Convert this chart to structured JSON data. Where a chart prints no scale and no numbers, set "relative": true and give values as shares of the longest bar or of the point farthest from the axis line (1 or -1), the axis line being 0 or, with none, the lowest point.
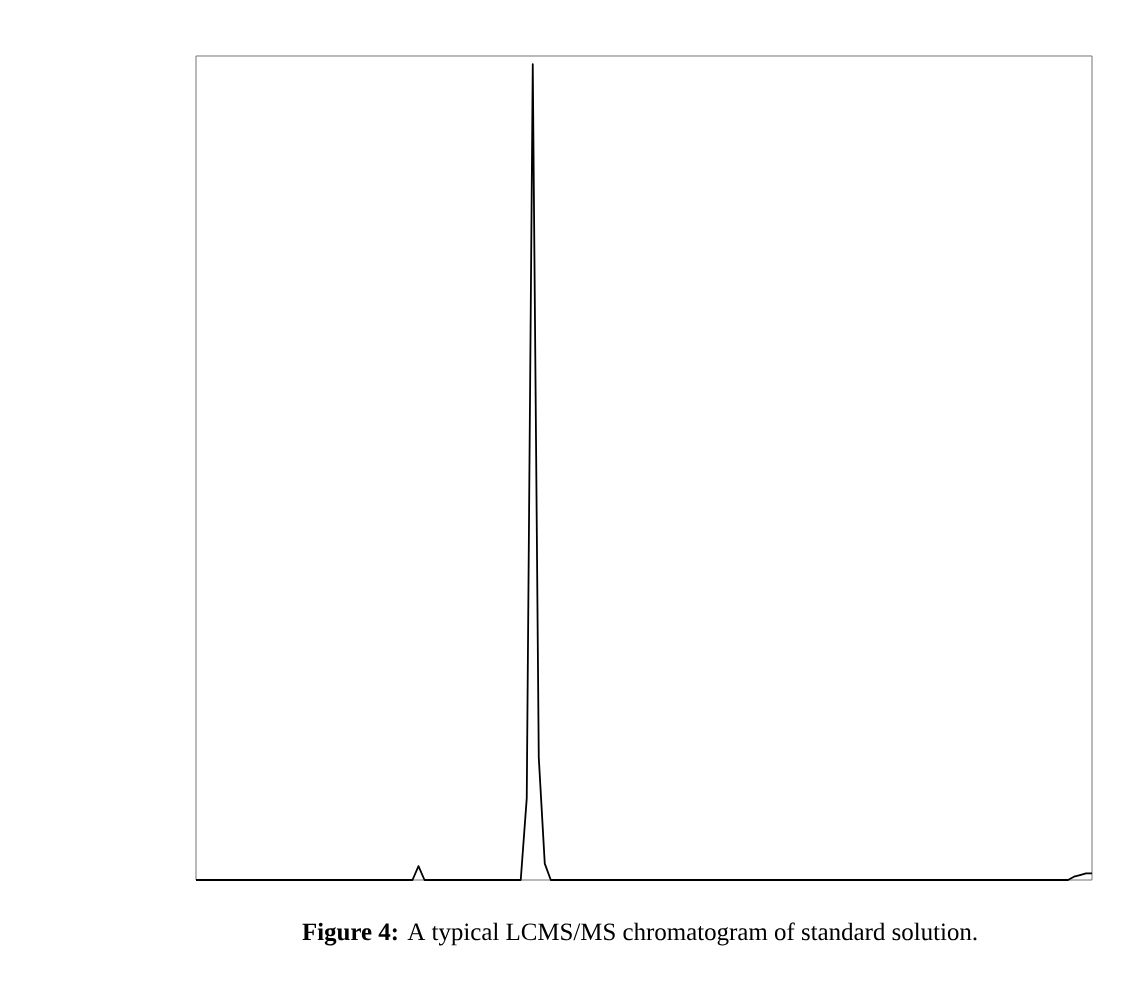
{
  "chart_data": {
    "type": "line",
    "relative": true,
    "color": "#000000",
    "categories": [
      null,
      null,
      null,
      null,
      null,
      null,
      null,
      null,
      null,
      null,
      null,
      null,
      null,
      null,
      null,
      null,
      null,
      null,
      null,
      null,
      null,
      null,
      null,
      null,
      null,
      null,
      null,
      null,
      null,
      null,
      null,
      null,
      null,
      null,
      null,
      null,
      null,
      null,
      null,
      null,
      null,
      null,
      null,
      null,
      null,
      null,
      null,
      null,
      null,
      null,
      null,
      null,
      null,
      null,
      null,
      null,
      null,
      null,
      null,
      null,
      null,
      null,
      null,
      null,
      null,
      null,
      null,
      null,
      null,
      null,
      null,
      null,
      null,
      null,
      null,
      null,
      null,
      null,
      null,
      null,
      null,
      null,
      null,
      null,
      null,
      null,
      null,
      null,
      null,
      null,
      null,
      null,
      null,
      null,
      null,
      null,
      null,
      null,
      null,
      null,
      null,
      null,
      null,
      null,
      null,
      null,
      null,
      null,
      null,
      null,
      null,
      null,
      null,
      null,
      null,
      null,
      null,
      null,
      null,
      null,
      null,
      null,
      null,
      null,
      null,
      null,
      null,
      null,
      null,
      null,
      null,
      null,
      null,
      null,
      null,
      null,
      null,
      null,
      null,
      null,
      null,
      null,
      null,
      null,
      null,
      null,
      null,
      null,
      null,
      null
    ],
    "values": [
      0,
      0,
      0,
      0,
      0,
      0,
      0,
      0,
      0,
      0,
      0,
      0,
      0,
      0,
      0,
      0,
      0,
      0,
      0,
      0,
      0,
      0,
      0,
      0,
      0,
      0,
      0,
      0,
      0,
      0,
      0,
      0,
      0,
      0,
      0,
      0,
      0,
      0.017,
      0,
      0,
      0,
      0,
      0,
      0,
      0,
      0,
      0,
      0,
      0,
      0,
      0,
      0,
      0,
      0,
      0,
      0.1,
      1,
      0.15,
      0.02,
      0,
      0,
      0,
      0,
      0,
      0,
      0,
      0,
      0,
      0,
      0,
      0,
      0,
      0,
      0,
      0,
      0,
      0,
      0,
      0,
      0,
      0,
      0,
      0,
      0,
      0,
      0,
      0,
      0,
      0,
      0,
      0,
      0,
      0,
      0,
      0,
      0,
      0,
      0,
      0,
      0,
      0,
      0,
      0,
      0,
      0,
      0,
      0,
      0,
      0,
      0,
      0,
      0,
      0,
      0,
      0,
      0,
      0,
      0,
      0,
      0,
      0,
      0,
      0,
      0,
      0,
      0,
      0,
      0,
      0,
      0,
      0,
      0,
      0,
      0,
      0,
      0,
      0,
      0,
      0,
      0,
      0,
      0,
      0,
      0,
      0,
      0,
      0.004,
      0.006,
      0.008,
      0.008
    ],
    "annotations": [
      "**Figure 4:** A typical LCMS/MS chromatogram of standard solution."
    ]
  }
}
